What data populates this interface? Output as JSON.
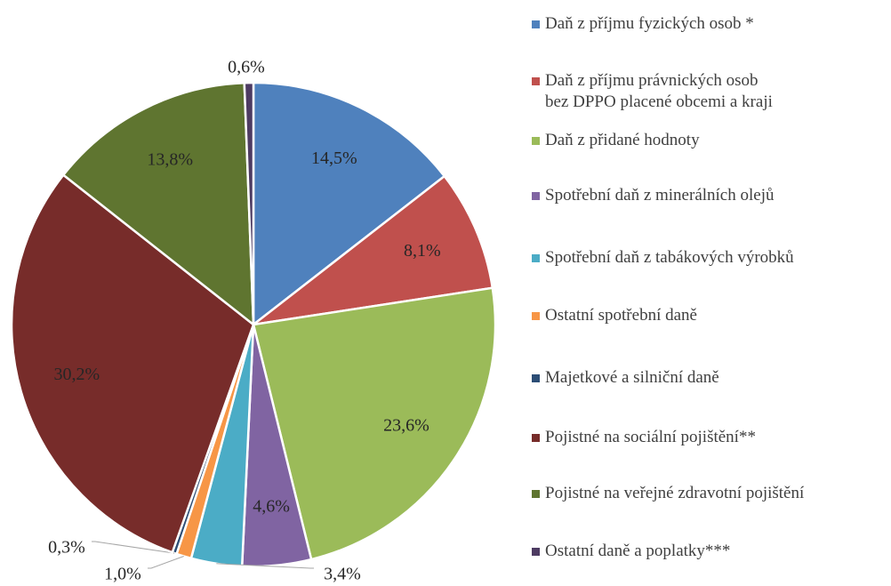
{
  "chart_data": {
    "type": "pie",
    "categories": [
      "Daň z příjmu fyzických osob *",
      "Daň z příjmu právnických osob\nbez DPPO placené obcemi a kraji",
      "Daň z přidané hodnoty",
      "Spotřební daň z minerálních olejů",
      "Spotřební daň z tabákových výrobků",
      "Ostatní spotřební daně",
      "Majetkové a silniční daně",
      "Pojistné na sociální pojištění**",
      "Pojistné na veřejné zdravotní pojištění",
      "Ostatní daně a poplatky***"
    ],
    "values": [
      14.5,
      8.1,
      23.6,
      4.6,
      3.4,
      1.0,
      0.3,
      30.2,
      13.8,
      0.6
    ],
    "value_labels": [
      "14,5%",
      "8,1%",
      "23,6%",
      "4,6%",
      "3,4%",
      "1,0%",
      "0,3%",
      "30,2%",
      "13,8%",
      "0,6%"
    ],
    "colors": [
      "#4f81bd",
      "#c0504d",
      "#9bbb59",
      "#8064a2",
      "#4bacc6",
      "#f79646",
      "#2c4d75",
      "#772c2a",
      "#5f7530",
      "#4d3b62"
    ],
    "legend": "right"
  }
}
